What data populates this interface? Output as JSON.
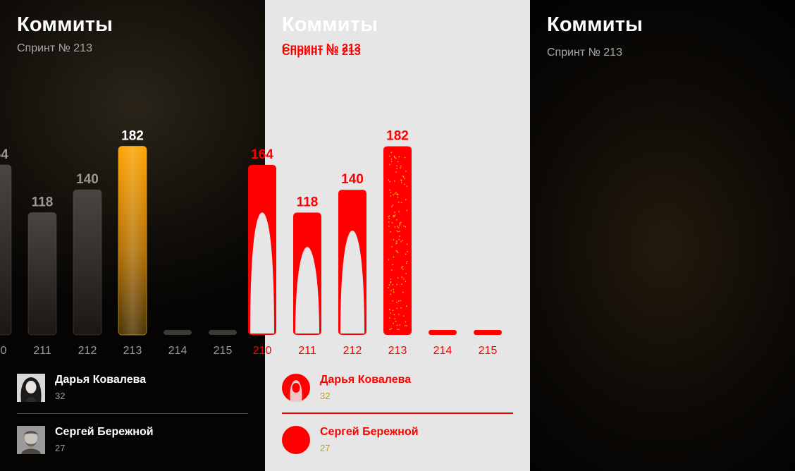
{
  "title": "Коммиты",
  "subtitle": "Спринт № 213",
  "chart_data": {
    "type": "bar",
    "categories": [
      "210",
      "211",
      "212",
      "213",
      "214",
      "215"
    ],
    "values": [
      164,
      118,
      140,
      182,
      0,
      0
    ],
    "value_labels": [
      "164",
      "118",
      "140",
      "182",
      "",
      ""
    ],
    "highlight": "213",
    "ylim": [
      0,
      200
    ],
    "grid": false,
    "title": "Коммиты",
    "subtitle": "Спринт № 213"
  },
  "contributors": [
    {
      "name": "Дарья Ковалева",
      "count": "32"
    },
    {
      "name": "Сергей Бережной",
      "count": "27"
    }
  ],
  "colors": {
    "highlight": "#ffa500",
    "bar": "#3a3631",
    "diff": "#ff0000",
    "diff_noise": "#ffd700"
  }
}
